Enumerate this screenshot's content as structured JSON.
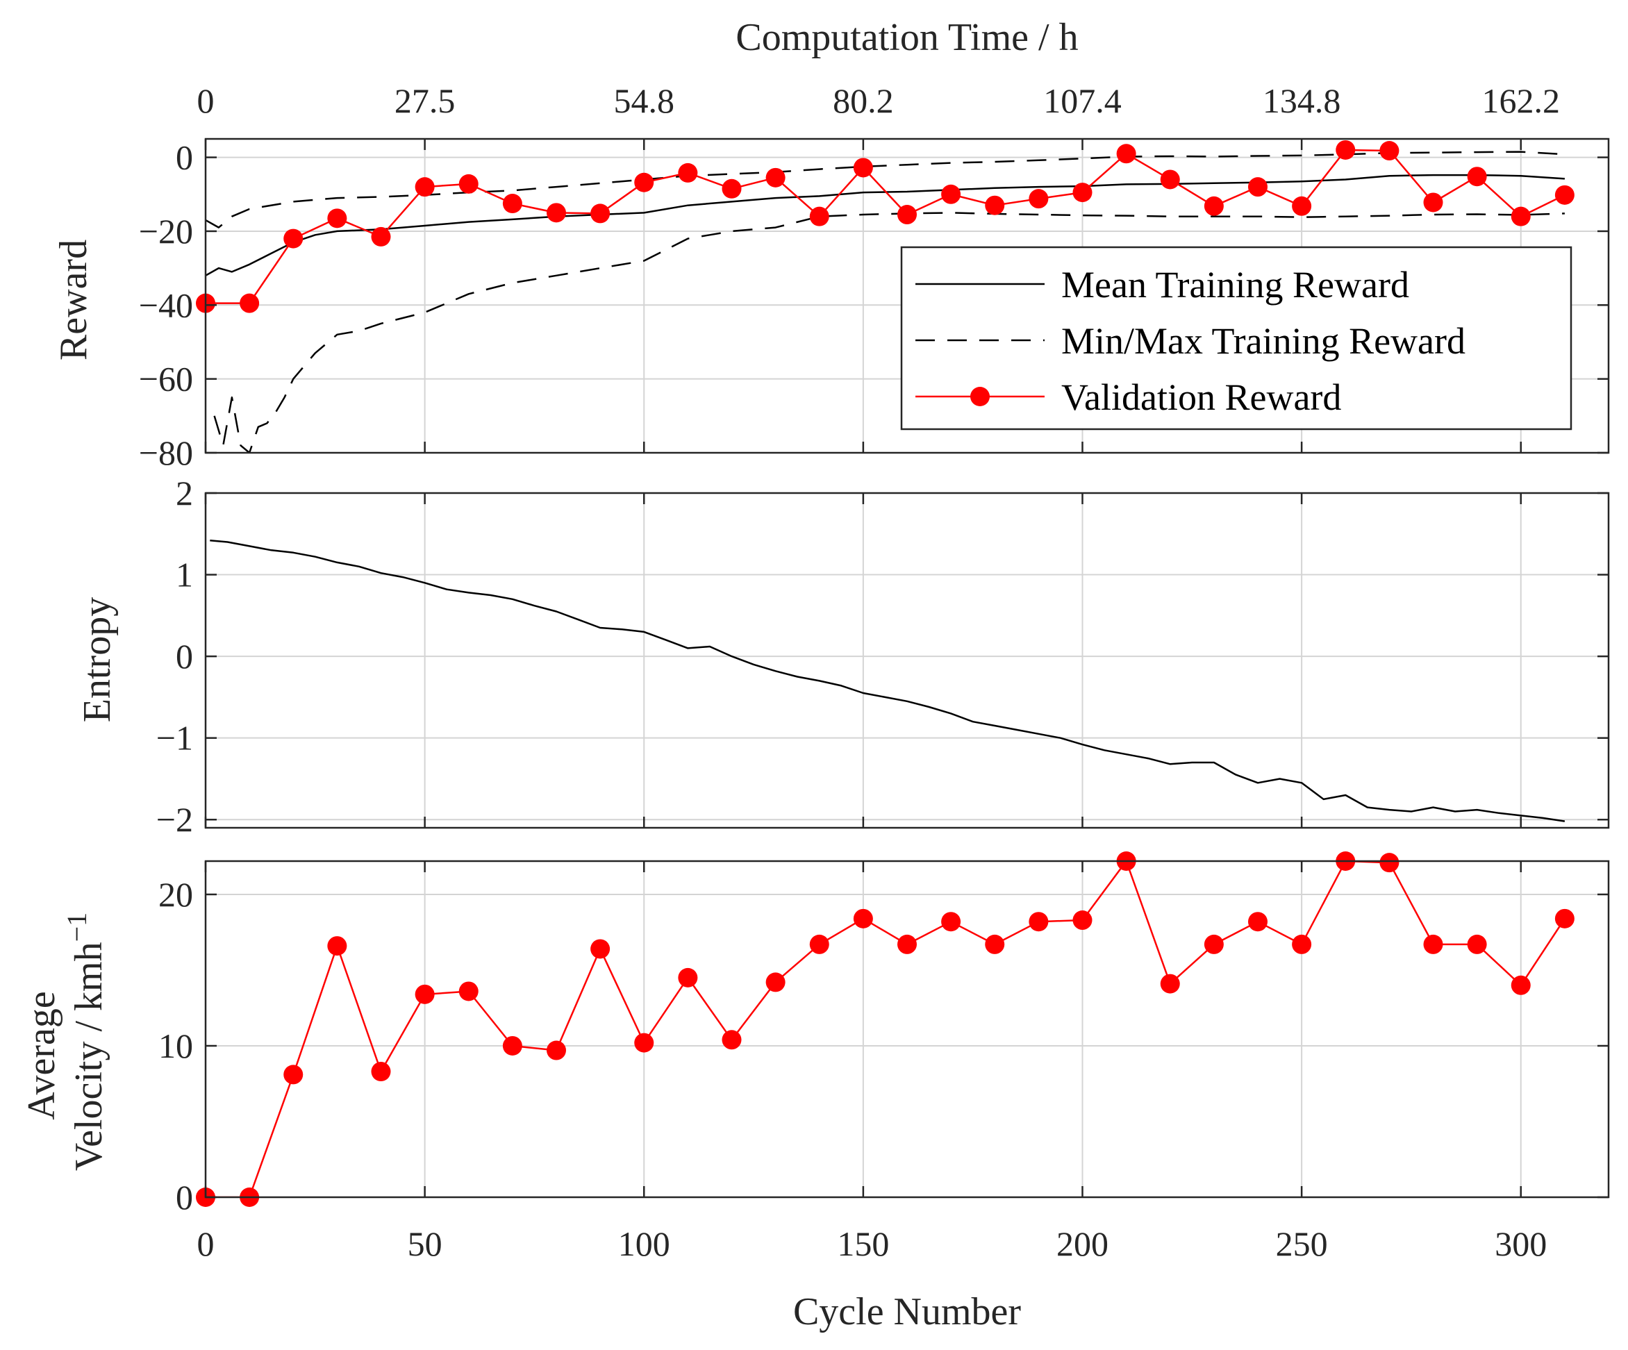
{
  "chart_data": [
    {
      "type": "line",
      "panel": "reward",
      "title": "",
      "top_axis_label": "Computation Time / h",
      "top_tick_labels": [
        "0",
        "27.5",
        "54.8",
        "80.2",
        "107.4",
        "134.8",
        "162.2"
      ],
      "top_tick_positions": [
        0,
        50,
        100,
        150,
        200,
        250,
        300
      ],
      "xlabel": "",
      "ylabel": "Reward",
      "xlim": [
        0,
        320
      ],
      "ylim": [
        -80,
        5
      ],
      "yticks": [
        -80,
        -60,
        -40,
        -20,
        0
      ],
      "ytick_labels": [
        "−80",
        "−60",
        "−40",
        "−20",
        "0"
      ],
      "grid": true,
      "legend": {
        "location": "right",
        "entries": [
          "Mean Training Reward",
          "Min/Max Training Reward",
          "Validation Reward"
        ]
      },
      "series": [
        {
          "name": "Mean Training Reward",
          "style": "solid",
          "color": "#000000",
          "x": [
            0,
            3,
            6,
            10,
            15,
            20,
            25,
            30,
            40,
            50,
            60,
            70,
            80,
            90,
            100,
            110,
            120,
            130,
            140,
            150,
            160,
            170,
            180,
            190,
            200,
            210,
            220,
            230,
            240,
            250,
            260,
            270,
            280,
            290,
            300,
            310
          ],
          "values": [
            -32,
            -30,
            -31,
            -29,
            -26,
            -23,
            -21,
            -20,
            -19.5,
            -18.5,
            -17.5,
            -16.8,
            -16,
            -15.5,
            -15,
            -13,
            -12,
            -11,
            -10.5,
            -9.5,
            -9.3,
            -8.8,
            -8.3,
            -8,
            -7.8,
            -7.3,
            -7.2,
            -7,
            -6.8,
            -6.5,
            -6,
            -5,
            -4.8,
            -4.8,
            -5,
            -5.8
          ]
        },
        {
          "name": "Max Training Reward",
          "style": "dashed",
          "color": "#000000",
          "x": [
            0,
            3,
            6,
            10,
            20,
            30,
            40,
            50,
            60,
            70,
            80,
            90,
            100,
            110,
            120,
            130,
            140,
            150,
            160,
            170,
            180,
            190,
            200,
            210,
            220,
            230,
            240,
            250,
            260,
            270,
            280,
            290,
            300,
            310
          ],
          "values": [
            -17,
            -19,
            -16,
            -14,
            -12,
            -11,
            -10.7,
            -10.2,
            -9.5,
            -9,
            -8,
            -7,
            -6,
            -5,
            -4.5,
            -4,
            -3.2,
            -2.5,
            -2,
            -1.5,
            -1.2,
            -0.8,
            -0.3,
            0.2,
            0.3,
            0.2,
            0.4,
            0.5,
            0.8,
            1.2,
            1.3,
            1.4,
            1.5,
            0.8
          ]
        },
        {
          "name": "Min Training Reward",
          "style": "dashed",
          "color": "#000000",
          "x": [
            2,
            4,
            6,
            8,
            10,
            12,
            14,
            16,
            18,
            20,
            25,
            30,
            35,
            40,
            50,
            60,
            70,
            80,
            90,
            100,
            110,
            115,
            120,
            130,
            140,
            150,
            160,
            170,
            180,
            190,
            200,
            210,
            220,
            230,
            240,
            250,
            260,
            270,
            280,
            290,
            300,
            310
          ],
          "values": [
            -70,
            -78,
            -65,
            -78,
            -80,
            -73,
            -72,
            -69,
            -65,
            -60,
            -53,
            -48,
            -47,
            -45,
            -42,
            -37,
            -34,
            -32,
            -30,
            -28,
            -22,
            -21,
            -20,
            -19,
            -16,
            -15.5,
            -15.2,
            -15,
            -15.3,
            -15.5,
            -15.7,
            -15.8,
            -16,
            -16,
            -16,
            -16.2,
            -16,
            -15.8,
            -15.5,
            -15.4,
            -15.6,
            -15.2
          ]
        },
        {
          "name": "Validation Reward",
          "style": "solid-markers",
          "color": "#ff0000",
          "x": [
            0,
            10,
            20,
            30,
            40,
            50,
            60,
            70,
            80,
            90,
            100,
            110,
            120,
            130,
            140,
            150,
            160,
            170,
            180,
            190,
            200,
            210,
            220,
            230,
            240,
            250,
            260,
            270,
            280,
            290,
            300,
            310
          ],
          "values": [
            -39.5,
            -39.5,
            -22,
            -16.5,
            -21.5,
            -8,
            -7.2,
            -12.5,
            -15,
            -15.2,
            -6.8,
            -4.2,
            -8.5,
            -5.5,
            -16,
            -2.8,
            -15.5,
            -10,
            -13,
            -11.2,
            -9.5,
            1,
            -6,
            -13.2,
            -8,
            -13.2,
            2,
            1.8,
            -12.2,
            -5.2,
            -16,
            -10.2
          ]
        }
      ]
    },
    {
      "type": "line",
      "panel": "entropy",
      "title": "",
      "xlabel": "",
      "ylabel": "Entropy",
      "xlim": [
        0,
        320
      ],
      "ylim": [
        -2.1,
        2
      ],
      "yticks": [
        -2,
        -1,
        0,
        1,
        2
      ],
      "ytick_labels": [
        "−2",
        "−1",
        "0",
        "1",
        "2"
      ],
      "grid": true,
      "series": [
        {
          "name": "Entropy",
          "style": "solid",
          "color": "#000000",
          "x": [
            1,
            5,
            10,
            15,
            20,
            25,
            30,
            35,
            40,
            45,
            50,
            55,
            60,
            65,
            70,
            75,
            80,
            85,
            90,
            95,
            100,
            105,
            110,
            115,
            120,
            125,
            130,
            135,
            140,
            145,
            150,
            155,
            160,
            165,
            170,
            175,
            180,
            185,
            190,
            195,
            200,
            205,
            210,
            215,
            220,
            225,
            230,
            235,
            240,
            245,
            250,
            255,
            260,
            265,
            270,
            275,
            280,
            285,
            290,
            295,
            300,
            305,
            310
          ],
          "values": [
            1.42,
            1.4,
            1.35,
            1.3,
            1.27,
            1.22,
            1.15,
            1.1,
            1.02,
            0.97,
            0.9,
            0.82,
            0.78,
            0.75,
            0.7,
            0.62,
            0.55,
            0.45,
            0.35,
            0.33,
            0.3,
            0.2,
            0.1,
            0.12,
            0.0,
            -0.1,
            -0.18,
            -0.25,
            -0.3,
            -0.36,
            -0.45,
            -0.5,
            -0.55,
            -0.62,
            -0.7,
            -0.8,
            -0.85,
            -0.9,
            -0.95,
            -1.0,
            -1.08,
            -1.15,
            -1.2,
            -1.25,
            -1.32,
            -1.3,
            -1.3,
            -1.45,
            -1.55,
            -1.5,
            -1.55,
            -1.75,
            -1.7,
            -1.85,
            -1.88,
            -1.9,
            -1.85,
            -1.9,
            -1.88,
            -1.92,
            -1.95,
            -1.98,
            -2.02
          ]
        }
      ]
    },
    {
      "type": "line",
      "panel": "velocity",
      "title": "",
      "xlabel": "Cycle Number",
      "ylabel_line1": "Average",
      "ylabel_line2": "Velocity / kmh",
      "ylabel_superscript": "−1",
      "xlim": [
        0,
        320
      ],
      "xticks": [
        0,
        50,
        100,
        150,
        200,
        250,
        300
      ],
      "xtick_labels": [
        "0",
        "50",
        "100",
        "150",
        "200",
        "250",
        "300"
      ],
      "ylim": [
        0,
        22.2
      ],
      "yticks": [
        0,
        10,
        20
      ],
      "ytick_labels": [
        "0",
        "10",
        "20"
      ],
      "grid": true,
      "series": [
        {
          "name": "Average Velocity",
          "style": "solid-markers",
          "color": "#ff0000",
          "x": [
            0,
            10,
            20,
            30,
            40,
            50,
            60,
            70,
            80,
            90,
            100,
            110,
            120,
            130,
            140,
            150,
            160,
            170,
            180,
            190,
            200,
            210,
            220,
            230,
            240,
            250,
            260,
            270,
            280,
            290,
            300,
            310
          ],
          "values": [
            0,
            0,
            8.1,
            16.6,
            8.3,
            13.4,
            13.6,
            10,
            9.7,
            16.4,
            10.2,
            14.5,
            10.4,
            14.2,
            16.7,
            18.4,
            16.7,
            18.2,
            16.7,
            18.2,
            18.3,
            22.2,
            14.1,
            16.7,
            18.2,
            16.7,
            22.2,
            22.1,
            16.7,
            16.7,
            14,
            18.4
          ]
        }
      ]
    }
  ]
}
